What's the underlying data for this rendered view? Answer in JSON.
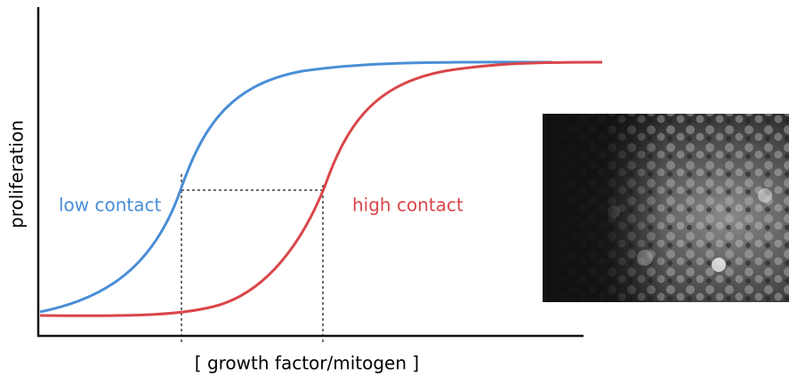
{
  "axes": {
    "y_label": "proliferation",
    "x_label": "[ growth factor/mitogen ]"
  },
  "curves": [
    {
      "label": "low contact",
      "color": "#4a8ed6"
    },
    {
      "label": "high contact",
      "color": "#d9464a"
    }
  ]
}
